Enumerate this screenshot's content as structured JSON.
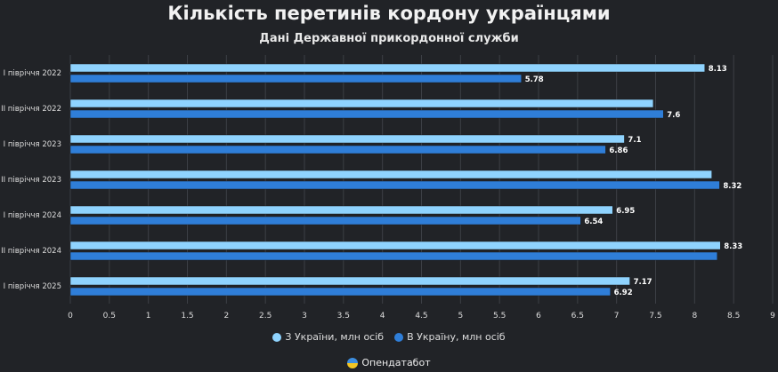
{
  "chart_data": {
    "type": "bar",
    "orientation": "horizontal",
    "title": "Кількість перетинів кордону українцями",
    "subtitle": "Дані Державної прикордонної служби",
    "categories": [
      "I півріччя 2022",
      "II півріччя 2022",
      "I півріччя 2023",
      "II півріччя 2023",
      "I півріччя 2024",
      "II півріччя 2024",
      "I півріччя 2025"
    ],
    "series": [
      {
        "name": "З України, млн осіб",
        "color": "#8fd3fe",
        "values": [
          8.13,
          7.47,
          7.1,
          8.22,
          6.95,
          8.33,
          7.17
        ],
        "labels": [
          "8.13",
          "",
          "7.1",
          "",
          "6.95",
          "8.33",
          "7.17"
        ]
      },
      {
        "name": "В Україну, млн осіб",
        "color": "#2f7ed8",
        "values": [
          5.78,
          7.6,
          6.86,
          8.32,
          6.54,
          8.29,
          6.92
        ],
        "labels": [
          "5.78",
          "7.6",
          "6.86",
          "8.32",
          "6.54",
          "",
          "6.92"
        ]
      }
    ],
    "xlim": [
      0,
      9
    ],
    "xticks": [
      "0",
      "0.5",
      "1",
      "1.5",
      "2",
      "2.5",
      "3",
      "3.5",
      "4",
      "4.5",
      "5",
      "5.5",
      "6",
      "6.5",
      "7",
      "7.5",
      "8",
      "8.5",
      "9"
    ],
    "grid": true,
    "legend": "bottom"
  },
  "credit": "Опендатабот"
}
